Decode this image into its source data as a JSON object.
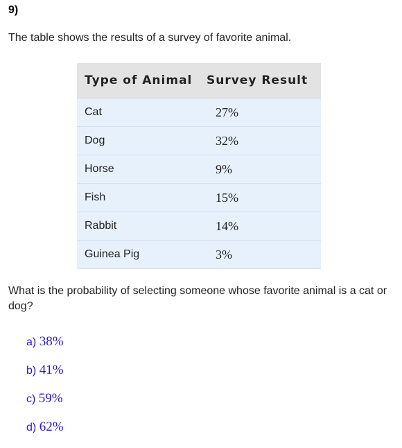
{
  "question_number": "9)",
  "intro_text": "The table shows the results of a survey of favorite animal.",
  "table": {
    "headers": [
      "Type of Animal",
      "Survey Result"
    ],
    "rows": [
      {
        "animal": "Cat",
        "result": "27%"
      },
      {
        "animal": "Dog",
        "result": "32%"
      },
      {
        "animal": "Horse",
        "result": "9%"
      },
      {
        "animal": "Fish",
        "result": "15%"
      },
      {
        "animal": "Rabbit",
        "result": "14%"
      },
      {
        "animal": "Guinea Pig",
        "result": "3%"
      }
    ]
  },
  "question_text": "What is the probability of selecting someone whose favorite animal is a cat or dog?",
  "choices": [
    {
      "letter": "a)",
      "value": "38%"
    },
    {
      "letter": "b)",
      "value": "41%"
    },
    {
      "letter": "c)",
      "value": "59%"
    },
    {
      "letter": "d)",
      "value": "62%"
    }
  ],
  "colors": {
    "header_bg": "#e3e3e3",
    "row_bg": "#e6f1fb",
    "choice_text": "#2a1ac2"
  }
}
